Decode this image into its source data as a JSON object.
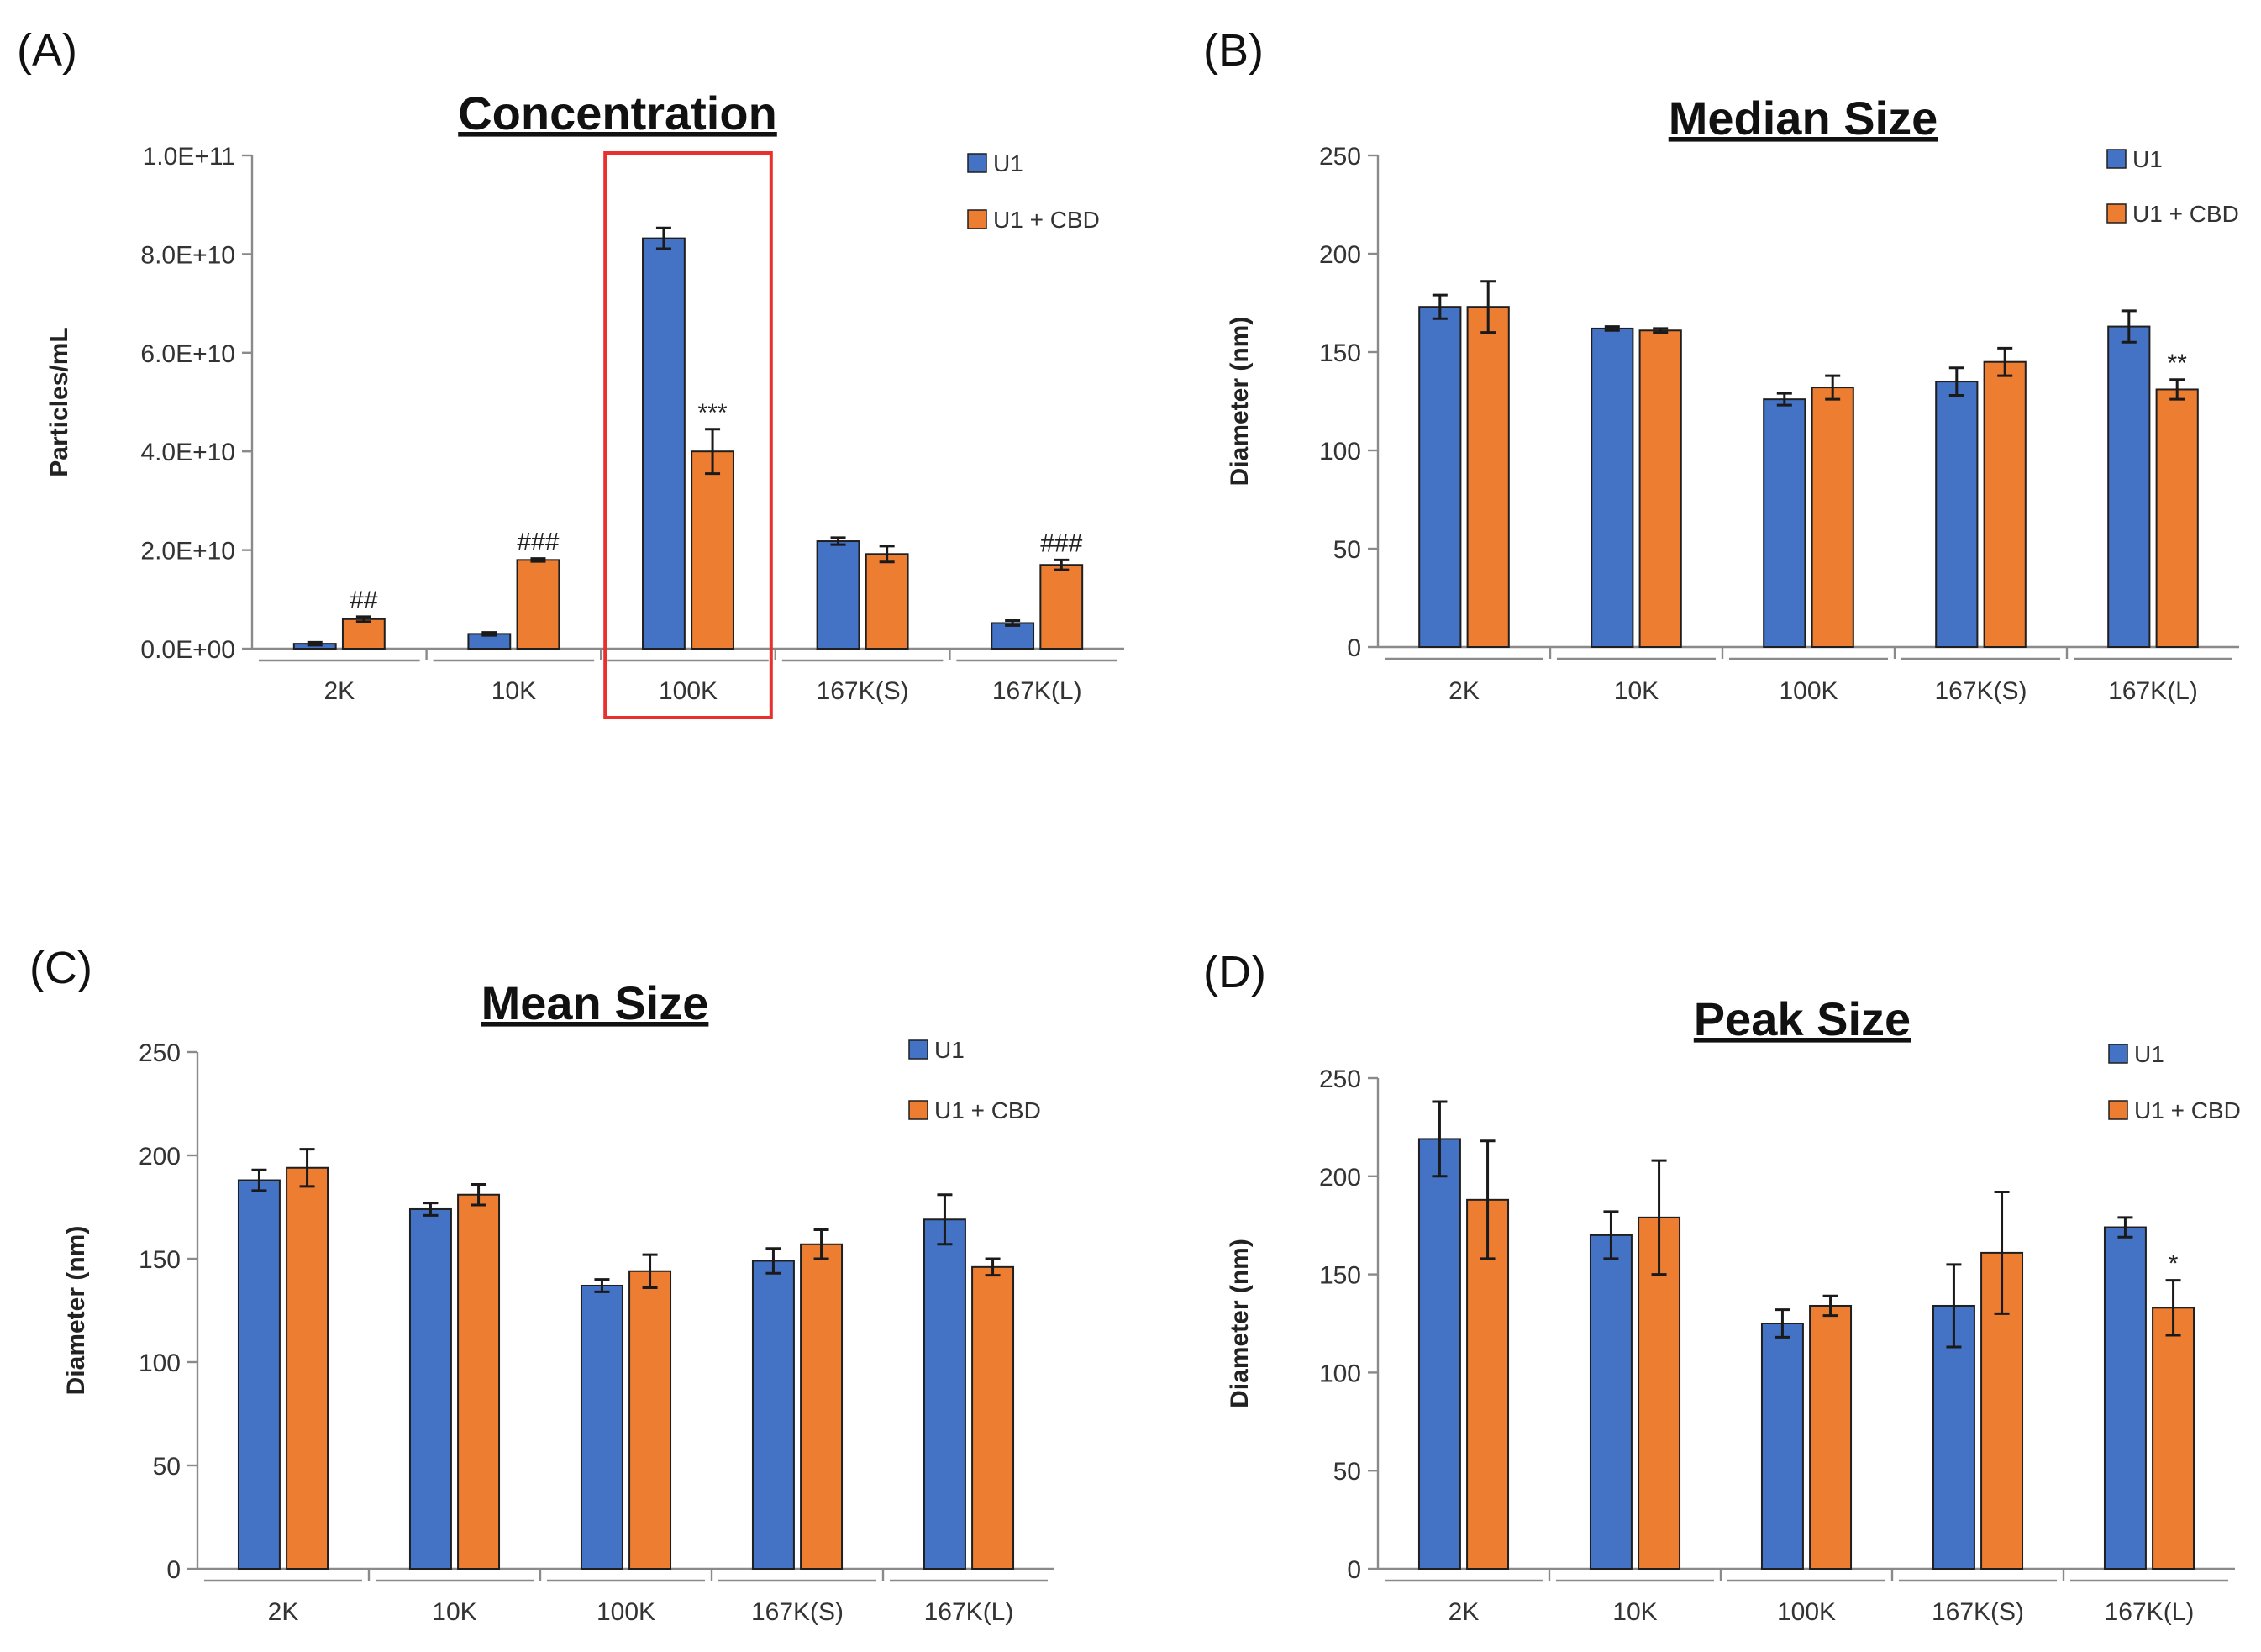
{
  "colors": {
    "u1": "#4472C4",
    "cbd": "#ED7D31",
    "highlight": "#E8302F"
  },
  "chart_data": [
    {
      "type": "bar",
      "panel": "(A)",
      "title": "Concentration",
      "ylabel": "Particles/mL",
      "xlabel": "",
      "categories": [
        "2K",
        "10K",
        "100K",
        "167K(S)",
        "167K(L)"
      ],
      "yticks": [
        "0.0E+00",
        "2.0E+10",
        "4.0E+10",
        "6.0E+10",
        "8.0E+10",
        "1.0E+11"
      ],
      "ylim": [
        0,
        100000000000
      ],
      "series": [
        {
          "name": "U1",
          "values": [
            1000000000,
            3000000000,
            83200000000,
            21800000000,
            5200000000
          ],
          "errors": [
            300000000,
            300000000,
            2100000000,
            700000000,
            500000000
          ]
        },
        {
          "name": "U1 + CBD",
          "values": [
            6000000000,
            18000000000,
            40000000000,
            19200000000,
            17000000000
          ],
          "errors": [
            500000000,
            300000000,
            4500000000,
            1600000000,
            1000000000
          ]
        }
      ],
      "annotations": [
        {
          "category": "2K",
          "series": "U1 + CBD",
          "text": "##"
        },
        {
          "category": "10K",
          "series": "U1 + CBD",
          "text": "###"
        },
        {
          "category": "100K",
          "series": "U1 + CBD",
          "text": "***"
        },
        {
          "category": "167K(L)",
          "series": "U1 + CBD",
          "text": "###"
        }
      ],
      "highlight_category": "100K",
      "legend": "top-right"
    },
    {
      "type": "bar",
      "panel": "(B)",
      "title": "Median Size",
      "ylabel": "Diameter (nm)",
      "xlabel": "",
      "categories": [
        "2K",
        "10K",
        "100K",
        "167K(S)",
        "167K(L)"
      ],
      "yticks": [
        "0",
        "50",
        "100",
        "150",
        "200",
        "250"
      ],
      "ylim": [
        0,
        250
      ],
      "series": [
        {
          "name": "U1",
          "values": [
            173,
            162,
            126,
            135,
            163
          ],
          "errors": [
            6,
            1,
            3,
            7,
            8
          ]
        },
        {
          "name": "U1 + CBD",
          "values": [
            173,
            161,
            132,
            145,
            131
          ],
          "errors": [
            13,
            1,
            6,
            7,
            5
          ]
        }
      ],
      "annotations": [
        {
          "category": "167K(L)",
          "series": "U1 + CBD",
          "text": "**"
        }
      ],
      "legend": "top-right"
    },
    {
      "type": "bar",
      "panel": "(C)",
      "title": "Mean Size",
      "ylabel": "Diameter (nm)",
      "xlabel": "",
      "categories": [
        "2K",
        "10K",
        "100K",
        "167K(S)",
        "167K(L)"
      ],
      "yticks": [
        "0",
        "50",
        "100",
        "150",
        "200",
        "250"
      ],
      "ylim": [
        0,
        250
      ],
      "series": [
        {
          "name": "U1",
          "values": [
            188,
            174,
            137,
            149,
            169
          ],
          "errors": [
            5,
            3,
            3,
            6,
            12
          ]
        },
        {
          "name": "U1 + CBD",
          "values": [
            194,
            181,
            144,
            157,
            146
          ],
          "errors": [
            9,
            5,
            8,
            7,
            4
          ]
        }
      ],
      "annotations": [],
      "legend": "top-right"
    },
    {
      "type": "bar",
      "panel": "(D)",
      "title": "Peak Size",
      "ylabel": "Diameter (nm)",
      "xlabel": "",
      "categories": [
        "2K",
        "10K",
        "100K",
        "167K(S)",
        "167K(L)"
      ],
      "yticks": [
        "0",
        "50",
        "100",
        "150",
        "200",
        "250"
      ],
      "ylim": [
        0,
        250
      ],
      "series": [
        {
          "name": "U1",
          "values": [
            219,
            170,
            125,
            134,
            174
          ],
          "errors": [
            19,
            12,
            7,
            21,
            5
          ]
        },
        {
          "name": "U1 + CBD",
          "values": [
            188,
            179,
            134,
            161,
            133
          ],
          "errors": [
            30,
            29,
            5,
            31,
            14
          ]
        }
      ],
      "annotations": [
        {
          "category": "167K(L)",
          "series": "U1 + CBD",
          "text": "*"
        }
      ],
      "legend": "top-right"
    }
  ]
}
